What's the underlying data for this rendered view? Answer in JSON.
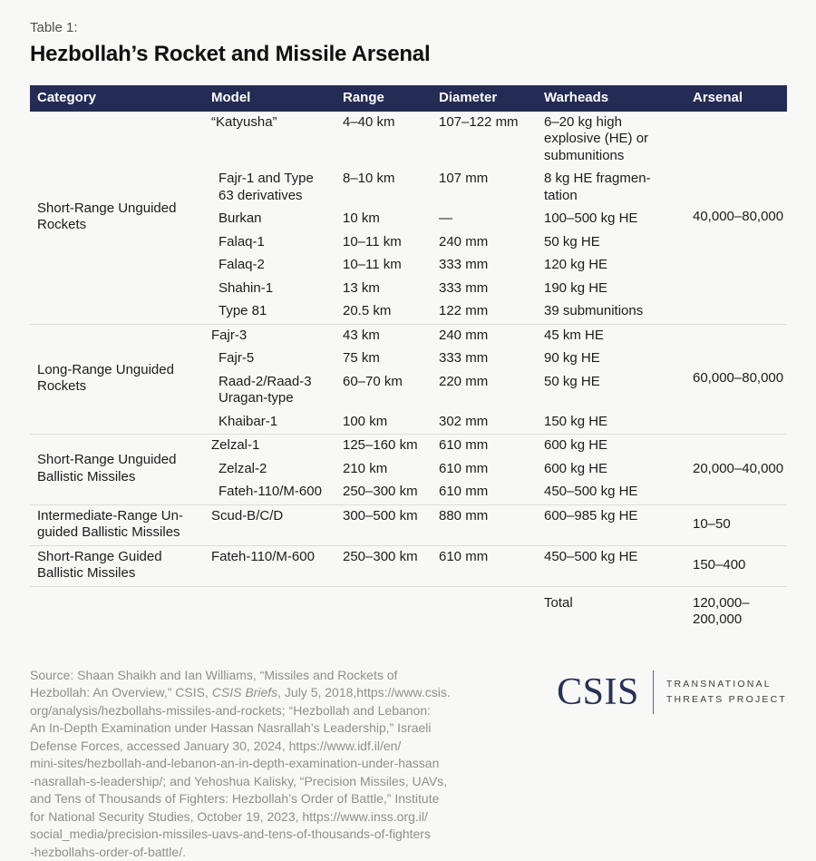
{
  "header": {
    "table_label": "Table 1:",
    "title": "Hezbollah’s Rocket and Missile Arsenal"
  },
  "table": {
    "headers": [
      "Category",
      "Model",
      "Range",
      "Diameter",
      "Warheads",
      "Arsenal"
    ],
    "sections": [
      {
        "category": "Short-Range Unguided\nRockets",
        "arsenal": "40,000–80,000",
        "rows": [
          {
            "model": "“Katyusha”",
            "range": "4–40 km",
            "diameter": "107–122 mm",
            "warheads": "6–20 kg high\nexplosive (HE) or\nsubmunitions"
          },
          {
            "model": "Fajr-1 and Type\n63 derivatives",
            "range": "8–10 km",
            "diameter": "107 mm",
            "warheads": "8 kg HE fragmen-\ntation"
          },
          {
            "model": "Burkan",
            "range": "10 km",
            "diameter": "—",
            "warheads": "100–500 kg HE"
          },
          {
            "model": "Falaq-1",
            "range": "10–11 km",
            "diameter": "240 mm",
            "warheads": "50 kg HE"
          },
          {
            "model": "Falaq-2",
            "range": "10–11 km",
            "diameter": "333 mm",
            "warheads": "120 kg HE"
          },
          {
            "model": "Shahin-1",
            "range": "13 km",
            "diameter": "333 mm",
            "warheads": "190 kg HE"
          },
          {
            "model": "Type 81",
            "range": "20.5 km",
            "diameter": "122 mm",
            "warheads": "39 submunitions"
          }
        ]
      },
      {
        "category": "Long-Range Unguided\nRockets",
        "arsenal": "60,000–80,000",
        "rows": [
          {
            "model": "Fajr-3",
            "range": "43 km",
            "diameter": "240 mm",
            "warheads": "45 km HE"
          },
          {
            "model": "Fajr-5",
            "range": "75 km",
            "diameter": "333 mm",
            "warheads": "90 kg HE"
          },
          {
            "model": "Raad-2/Raad-3\nUragan-type",
            "range": "60–70 km",
            "diameter": "220 mm",
            "warheads": "50 kg HE"
          },
          {
            "model": "Khaibar-1",
            "range": "100 km",
            "diameter": "302 mm",
            "warheads": "150 kg HE"
          }
        ]
      },
      {
        "category": "Short-Range Unguided\nBallistic Missiles",
        "arsenal": "20,000–40,000",
        "rows": [
          {
            "model": "Zelzal-1",
            "range": "125–160 km",
            "diameter": "610 mm",
            "warheads": "600 kg HE"
          },
          {
            "model": "Zelzal-2",
            "range": "210 km",
            "diameter": "610 mm",
            "warheads": "600 kg HE"
          },
          {
            "model": "Fateh-110/M-600",
            "range": "250–300 km",
            "diameter": "610 mm",
            "warheads": "450–500 kg HE"
          }
        ]
      },
      {
        "category": "Intermediate-Range Un-\nguided Ballistic Missiles",
        "arsenal": "10–50",
        "rows": [
          {
            "model": "Scud-B/C/D",
            "range": "300–500 km",
            "diameter": "880 mm",
            "warheads": "600–985 kg HE"
          }
        ]
      },
      {
        "category": "Short-Range Guided\nBallistic Missiles",
        "arsenal": "150–400",
        "rows": [
          {
            "model": "Fateh-110/M-600",
            "range": "250–300 km",
            "diameter": "610 mm",
            "warheads": "450–500 kg HE"
          }
        ]
      }
    ],
    "total": {
      "label": "Total",
      "arsenal": "120,000–\n200,000"
    }
  },
  "footer": {
    "source_segments": [
      {
        "text": "Source: Shaan Shaikh and Ian Williams, “Missiles and Rockets of\nHezbollah: An Overview,” CSIS, ",
        "italic": false
      },
      {
        "text": "CSIS Briefs",
        "italic": true
      },
      {
        "text": ", July 5, 2018,https://www.csis.\norg/analysis/hezbollahs-missiles-and-rockets; “Hezbollah and Lebanon:\nAn In-Depth Examination under Hassan Nasrallah’s Leadership,” Israeli\nDefense Forces, accessed January 30, 2024, https://www.idf.il/en/\nmini-sites/hezbollah-and-lebanon-an-in-depth-examination-under-hassan\n-nasrallah-s-leadership/; and Yehoshua Kalisky, “Precision Missiles, UAVs,\nand Tens of Thousands of Fighters: Hezbollah’s Order of Battle,” Institute\nfor National Security Studies, October 19, 2023, https://www.inss.org.il/\nsocial_media/precision-missiles-uavs-and-tens-of-thousands-of-fighters\n-hezbollahs-order-of-battle/.",
        "italic": false
      }
    ],
    "logo": {
      "wordmark": "CSIS",
      "program_line1": "TRANSNATIONAL",
      "program_line2": "THREATS PROJECT"
    }
  },
  "colors": {
    "header_navy": "#242b55",
    "logo_navy": "#2a3157",
    "source_gray": "#8f8f8f",
    "separator_gray": "#dcdcdc",
    "background": "#f8f8f7"
  }
}
